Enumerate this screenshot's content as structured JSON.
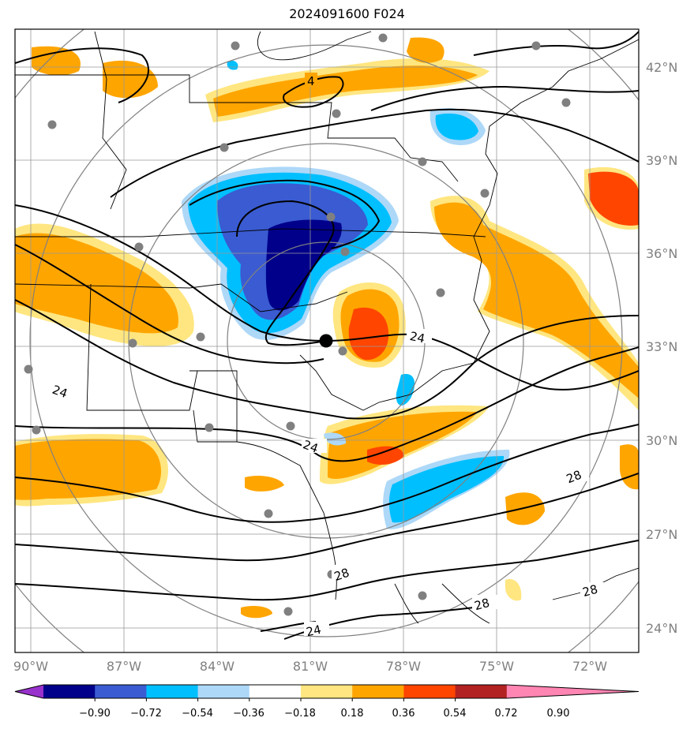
{
  "title": "2024091600 F024",
  "map": {
    "lat_labels": [
      "42°N",
      "39°N",
      "36°N",
      "33°N",
      "30°N",
      "27°N",
      "24°N"
    ],
    "lon_labels": [
      "90°W",
      "87°W",
      "84°W",
      "81°W",
      "78°W",
      "75°W",
      "72°W"
    ],
    "contour_labels": [
      "4",
      "24",
      "24",
      "24",
      "28",
      "28",
      "28",
      "28",
      "24"
    ],
    "colors": {
      "grid": "#999999",
      "station": "#808080",
      "center": "#000000"
    }
  },
  "colorbar": {
    "ticks": [
      "−0.90",
      "−0.72",
      "−0.54",
      "−0.36",
      "−0.18",
      "0.18",
      "0.36",
      "0.54",
      "0.72",
      "0.90"
    ],
    "colors": [
      "#9932cc",
      "#00008b",
      "#3a5bd1",
      "#00bfff",
      "#add8f8",
      "#ffffff",
      "#ffe680",
      "#ffa500",
      "#ff4500",
      "#b22222",
      "#ff85b3"
    ]
  }
}
